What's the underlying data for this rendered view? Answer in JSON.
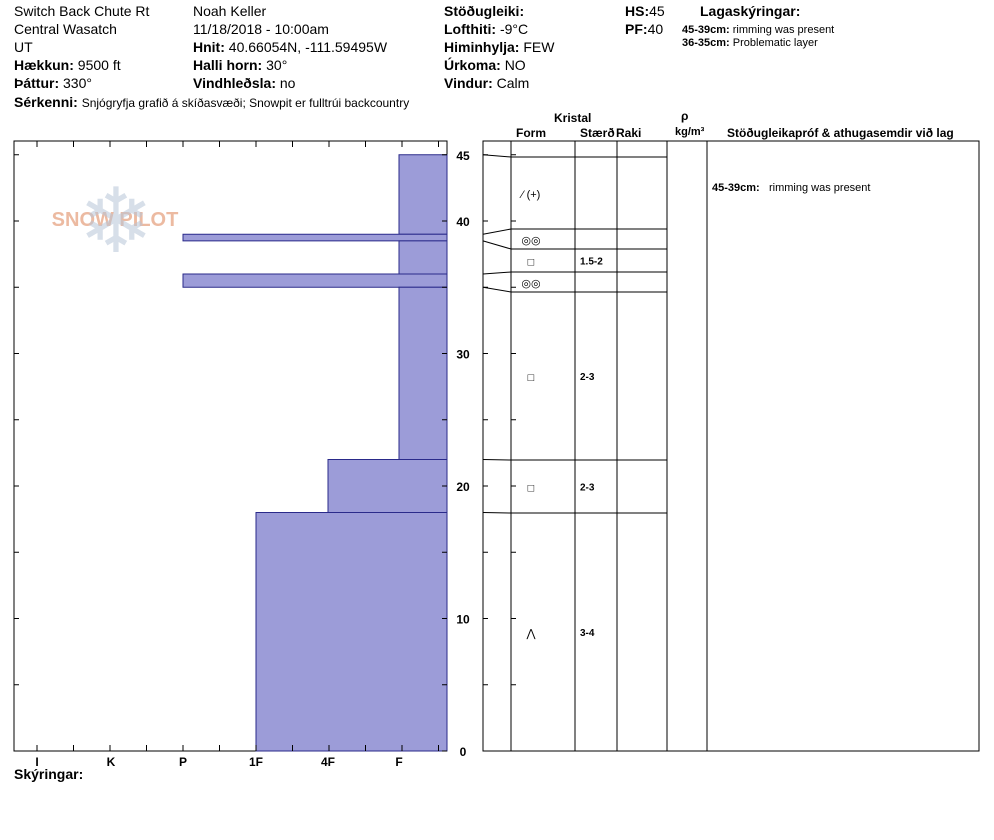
{
  "header": {
    "location": "Switch Back Chute Rt",
    "range": "Central Wasatch",
    "state": "UT",
    "elevation_label": "Hækkun:",
    "elevation": "9500 ft",
    "aspect_label": "Þáttur:",
    "aspect": "330°",
    "observer": "Noah Keller",
    "datetime": "11/18/2018 - 10:00am",
    "coords_label": "Hnit:",
    "coords": "40.66054N, -111.59495W",
    "slope_label": "Halli horn:",
    "slope": "30°",
    "wind_loading_label": "Vindhleðsla:",
    "wind_loading": "no",
    "stability_label": "Stöðugleiki:",
    "stability": "",
    "air_temp_label": "Lofthiti:",
    "air_temp": "-9°C",
    "sky_label": "Himinhylja:",
    "sky": "FEW",
    "precip_label": "Úrkoma:",
    "precip": "NO",
    "wind_label": "Vindur:",
    "wind": "Calm",
    "hs_label": "HS:",
    "hs": "45",
    "pf_label": "PF:",
    "pf": "40",
    "specifics_label": "Sérkenni:",
    "specifics": "Snjógryfja grafið á skíðasvæði;  Snowpit er fulltrúi backcountry"
  },
  "layer_notes": {
    "title": "Lagaskýringar:",
    "items": [
      {
        "range": "45-39cm:",
        "text": "rimming was present"
      },
      {
        "range": "36-35cm:",
        "text": "Problematic layer"
      }
    ]
  },
  "table_headers": {
    "crystal": "Kristal",
    "form": "Form",
    "size": "Stærð",
    "moisture": "Raki",
    "rho": "ρ",
    "density_unit": "kg/m³",
    "tests": "Stöðugleikapróf & athugasemdir við lag"
  },
  "comments_label": "Skýringar:",
  "watermark": "SNOW PILOT",
  "colors": {
    "hardness_fill": "#9c9cd8",
    "hardness_stroke": "#2a2a8a",
    "watermark": "#e8a98a"
  },
  "chart_data": {
    "type": "bar",
    "orientation": "horizontal",
    "x_categories": [
      "I",
      "K",
      "P",
      "1F",
      "4F",
      "F"
    ],
    "y_ticks": [
      0,
      10,
      20,
      30,
      40,
      45
    ],
    "ylim": [
      0,
      45
    ],
    "layers": [
      {
        "top": 45,
        "bottom": 39,
        "hardness": "F",
        "form": "⁄ (+)",
        "size": "",
        "comment": "45-39cm:",
        "comment_text": "rimming was present"
      },
      {
        "top": 39,
        "bottom": 38.5,
        "hardness": "P",
        "form": "◎◎",
        "size": ""
      },
      {
        "top": 38.5,
        "bottom": 36,
        "hardness": "F",
        "form": "□",
        "size": "1.5-2"
      },
      {
        "top": 36,
        "bottom": 35,
        "hardness": "P",
        "form": "◎◎",
        "size": ""
      },
      {
        "top": 35,
        "bottom": 22,
        "hardness": "F",
        "form": "□",
        "size": "2-3"
      },
      {
        "top": 22,
        "bottom": 18,
        "hardness": "4F",
        "form": "□",
        "size": "2-3"
      },
      {
        "top": 18,
        "bottom": 0,
        "hardness": "1F",
        "form": "⋀",
        "size": "3-4"
      }
    ]
  }
}
